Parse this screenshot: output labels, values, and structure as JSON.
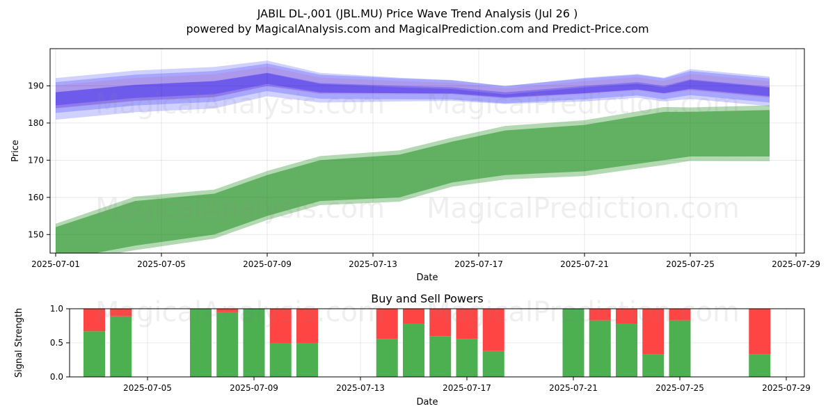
{
  "title_line1": "JABIL DL-,001 (JBL.MU) Price Wave Trend Analysis (Jul 26 )",
  "title_line2": "powered by MagicalAnalysis.com and MagicalPrediction.com and Predict-Price.com",
  "watermark_left": "MagicalAnalysis.com",
  "watermark_right": "MagicalPrediction.com",
  "colors": {
    "blue_band": "#0000ff",
    "red_band": "#ff0000",
    "green_band": "#008000",
    "buy": "#4caf50",
    "sell": "#ff4444"
  },
  "chart_data": [
    {
      "type": "area",
      "title": "",
      "xlabel": "Date",
      "ylabel": "Price",
      "xlim": [
        "2025-06-30",
        "2025-07-29"
      ],
      "ylim": [
        145,
        200
      ],
      "x_ticks": [
        "2025-07-01",
        "2025-07-05",
        "2025-07-09",
        "2025-07-13",
        "2025-07-17",
        "2025-07-21",
        "2025-07-25",
        "2025-07-29"
      ],
      "y_ticks": [
        150,
        160,
        170,
        180,
        190
      ],
      "grid": true,
      "series": [
        {
          "color": "green",
          "x": [
            "2025-07-01",
            "2025-07-04",
            "2025-07-07",
            "2025-07-09",
            "2025-07-11",
            "2025-07-14",
            "2025-07-16",
            "2025-07-18",
            "2025-07-21",
            "2025-07-24",
            "2025-07-25",
            "2025-07-28"
          ],
          "upper": [
            152,
            159,
            161,
            166,
            170,
            171.5,
            175,
            178,
            179.5,
            183,
            183,
            183.5
          ],
          "lower": [
            143,
            147,
            150,
            155,
            159,
            160,
            164,
            166,
            167,
            170,
            171,
            171
          ]
        },
        {
          "color": "blue",
          "x": [
            "2025-07-01",
            "2025-07-04",
            "2025-07-07",
            "2025-07-09",
            "2025-07-11",
            "2025-07-14",
            "2025-07-16",
            "2025-07-18",
            "2025-07-21",
            "2025-07-23",
            "2025-07-24",
            "2025-07-25",
            "2025-07-28"
          ],
          "upper": [
            190,
            192,
            193,
            195,
            192,
            191,
            190.5,
            189,
            191,
            192,
            191,
            193,
            191
          ],
          "lower": [
            183,
            185,
            186,
            189,
            187,
            187,
            187,
            186,
            187,
            188,
            187,
            188,
            186
          ]
        }
      ]
    },
    {
      "type": "bar",
      "title": "Buy and Sell Powers",
      "xlabel": "Date",
      "ylabel": "Signal Strength",
      "ylim": [
        0,
        1
      ],
      "y_ticks": [
        "0.0",
        "0.5",
        "1.0"
      ],
      "x_ticks": [
        "2025-07-05",
        "2025-07-09",
        "2025-07-13",
        "2025-07-17",
        "2025-07-21",
        "2025-07-25",
        "2025-07-29"
      ],
      "grid": true,
      "categories": [
        "2025-07-03",
        "2025-07-04",
        "2025-07-07",
        "2025-07-08",
        "2025-07-09",
        "2025-07-10",
        "2025-07-11",
        "2025-07-14",
        "2025-07-15",
        "2025-07-16",
        "2025-07-17",
        "2025-07-18",
        "2025-07-21",
        "2025-07-22",
        "2025-07-23",
        "2025-07-24",
        "2025-07-25",
        "2025-07-28"
      ],
      "series": [
        {
          "color": "green",
          "values": [
            0.67,
            0.89,
            1.0,
            0.95,
            1.0,
            0.5,
            0.5,
            0.56,
            0.78,
            0.6,
            0.56,
            0.38,
            1.0,
            0.83,
            0.78,
            0.33,
            0.83,
            0.33
          ]
        },
        {
          "color": "red",
          "values": [
            0.33,
            0.11,
            0.0,
            0.05,
            0.0,
            0.5,
            0.5,
            0.44,
            0.22,
            0.4,
            0.44,
            0.62,
            0.0,
            0.17,
            0.22,
            0.67,
            0.17,
            0.67
          ]
        }
      ]
    }
  ]
}
